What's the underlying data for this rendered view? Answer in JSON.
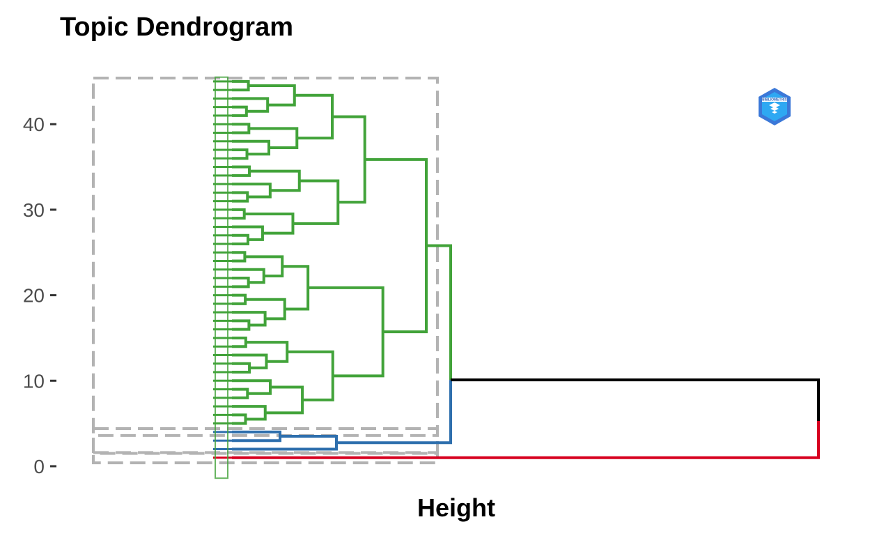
{
  "chart_data": {
    "type": "dendrogram",
    "title": "Topic Dendrogram",
    "xlabel": "Height",
    "ylabel": "",
    "ylim": [
      -1.5,
      45.5
    ],
    "y_ticks": [
      0,
      10,
      20,
      30,
      40
    ],
    "leaf_count": 45,
    "legend": "none",
    "grid": false,
    "clusters": [
      {
        "color": "#d7001f",
        "leaf_range": [
          1,
          1
        ],
        "members": []
      },
      {
        "color": "#2e6fad",
        "leaf_range": [
          2,
          4
        ],
        "members": []
      },
      {
        "color": "#42a33a",
        "leaf_range": [
          5,
          45
        ],
        "members": []
      }
    ],
    "cluster_box_color": "#b3b3b3",
    "root_link_color": "#000000",
    "logo": {
      "name": "bibliometrix-logo",
      "text": "BIBLIOMETRIX"
    }
  }
}
